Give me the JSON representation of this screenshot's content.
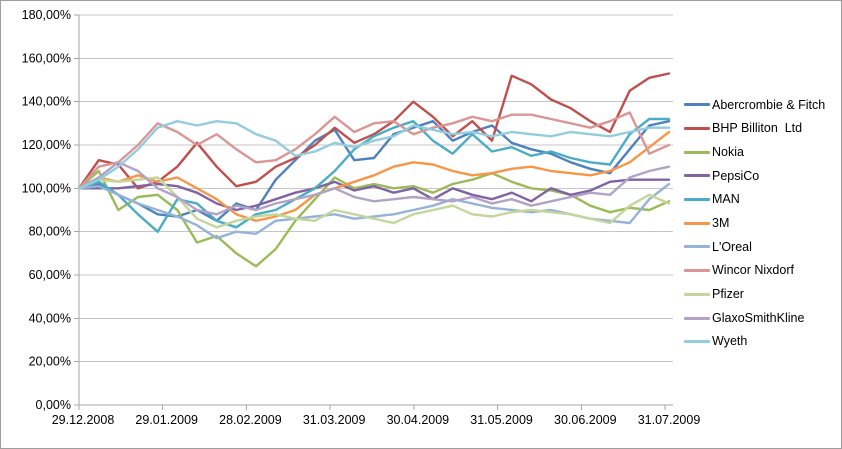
{
  "colors": {
    "background": "#FFFFFF",
    "chart_border": "#9E9E9E",
    "gridline": "#C6C6C6",
    "axis_line": "#A6A6A6",
    "tick": "#A6A6A6",
    "label_text": "#000000"
  },
  "chart_data": {
    "type": "line",
    "title": "",
    "xlabel": "",
    "ylabel": "",
    "grid": true,
    "legend_position": "right",
    "y_axis": {
      "min": 0,
      "max": 180,
      "step": 20,
      "tick_labels": [
        "0,00%",
        "20,00%",
        "40,00%",
        "60,00%",
        "80,00%",
        "100,00%",
        "120,00%",
        "140,00%",
        "160,00%",
        "180,00%"
      ]
    },
    "x_axis": {
      "tick_labels": [
        "29.12.2008",
        "29.01.2009",
        "28.02.2009",
        "31.03.2009",
        "30.04.2009",
        "31.05.2009",
        "30.06.2009",
        "31.07.2009"
      ],
      "interval": "weekly"
    },
    "series": [
      {
        "name": "Abercrombie & Fitch",
        "color": "#4F81BD",
        "values": [
          100,
          102,
          97,
          93,
          88,
          87,
          90,
          85,
          93,
          90,
          104,
          113,
          122,
          127,
          113,
          114,
          125,
          128,
          131,
          122,
          126,
          129,
          121,
          118,
          116,
          112,
          109,
          107,
          118,
          129,
          131
        ]
      },
      {
        "name": "BHP Billiton  Ltd",
        "color": "#C0504D",
        "values": [
          100,
          113,
          111,
          100,
          103,
          110,
          121,
          110,
          101,
          103,
          110,
          114,
          120,
          128,
          121,
          125,
          131,
          140,
          133,
          124,
          131,
          122,
          152,
          148,
          141,
          137,
          131,
          126,
          145,
          151,
          153
        ]
      },
      {
        "name": "Nokia",
        "color": "#9BBB59",
        "values": [
          100,
          108,
          90,
          96,
          97,
          90,
          75,
          78,
          70,
          64,
          72,
          85,
          95,
          105,
          100,
          102,
          100,
          101,
          98,
          102,
          104,
          107,
          103,
          100,
          99,
          97,
          92,
          89,
          91,
          90,
          94
        ]
      },
      {
        "name": "PepsiCo",
        "color": "#8064A2",
        "values": [
          100,
          100,
          100,
          101,
          102,
          101,
          98,
          93,
          90,
          92,
          95,
          98,
          100,
          103,
          99,
          101,
          98,
          100,
          95,
          100,
          97,
          95,
          98,
          94,
          100,
          97,
          99,
          103,
          104,
          104,
          104
        ]
      },
      {
        "name": "MAN",
        "color": "#4BACC6",
        "values": [
          100,
          103,
          97,
          88,
          80,
          95,
          93,
          85,
          82,
          88,
          90,
          95,
          100,
          108,
          118,
          124,
          128,
          131,
          122,
          116,
          125,
          117,
          119,
          115,
          117,
          114,
          112,
          111,
          125,
          132,
          132
        ]
      },
      {
        "name": "3M",
        "color": "#F79646",
        "values": [
          100,
          105,
          103,
          106,
          103,
          105,
          100,
          95,
          88,
          85,
          87,
          90,
          97,
          100,
          103,
          106,
          110,
          112,
          111,
          108,
          106,
          107,
          109,
          110,
          108,
          107,
          106,
          108,
          112,
          119,
          126
        ]
      },
      {
        "name": "L'Oreal",
        "color": "#95B3D7",
        "values": [
          100,
          101,
          97,
          93,
          90,
          87,
          83,
          77,
          80,
          79,
          85,
          86,
          87,
          88,
          86,
          87,
          88,
          90,
          92,
          95,
          93,
          91,
          90,
          89,
          90,
          88,
          86,
          85,
          84,
          95,
          102
        ]
      },
      {
        "name": "Wincor Nixdorf",
        "color": "#D99694",
        "values": [
          100,
          110,
          112,
          120,
          130,
          126,
          120,
          125,
          118,
          112,
          113,
          118,
          125,
          133,
          126,
          130,
          131,
          125,
          128,
          130,
          133,
          131,
          134,
          134,
          132,
          130,
          128,
          131,
          135,
          116,
          120
        ]
      },
      {
        "name": "Pfizer",
        "color": "#C3D69B",
        "values": [
          100,
          104,
          103,
          104,
          105,
          96,
          86,
          82,
          85,
          87,
          88,
          86,
          85,
          90,
          88,
          86,
          84,
          88,
          90,
          92,
          88,
          87,
          89,
          90,
          89,
          88,
          86,
          84,
          92,
          97,
          93
        ]
      },
      {
        "name": "GlaxoSmithKline",
        "color": "#B3A2C7",
        "values": [
          100,
          105,
          112,
          108,
          100,
          96,
          90,
          88,
          92,
          90,
          93,
          95,
          97,
          100,
          96,
          94,
          95,
          96,
          95,
          94,
          96,
          93,
          95,
          92,
          94,
          96,
          98,
          97,
          105,
          108,
          110
        ]
      },
      {
        "name": "Wyeth",
        "color": "#93CDDD",
        "values": [
          100,
          104,
          110,
          118,
          128,
          131,
          129,
          131,
          130,
          125,
          122,
          115,
          117,
          121,
          119,
          122,
          124,
          129,
          127,
          125,
          126,
          124,
          126,
          125,
          124,
          126,
          125,
          124,
          126,
          128,
          128
        ]
      }
    ]
  }
}
